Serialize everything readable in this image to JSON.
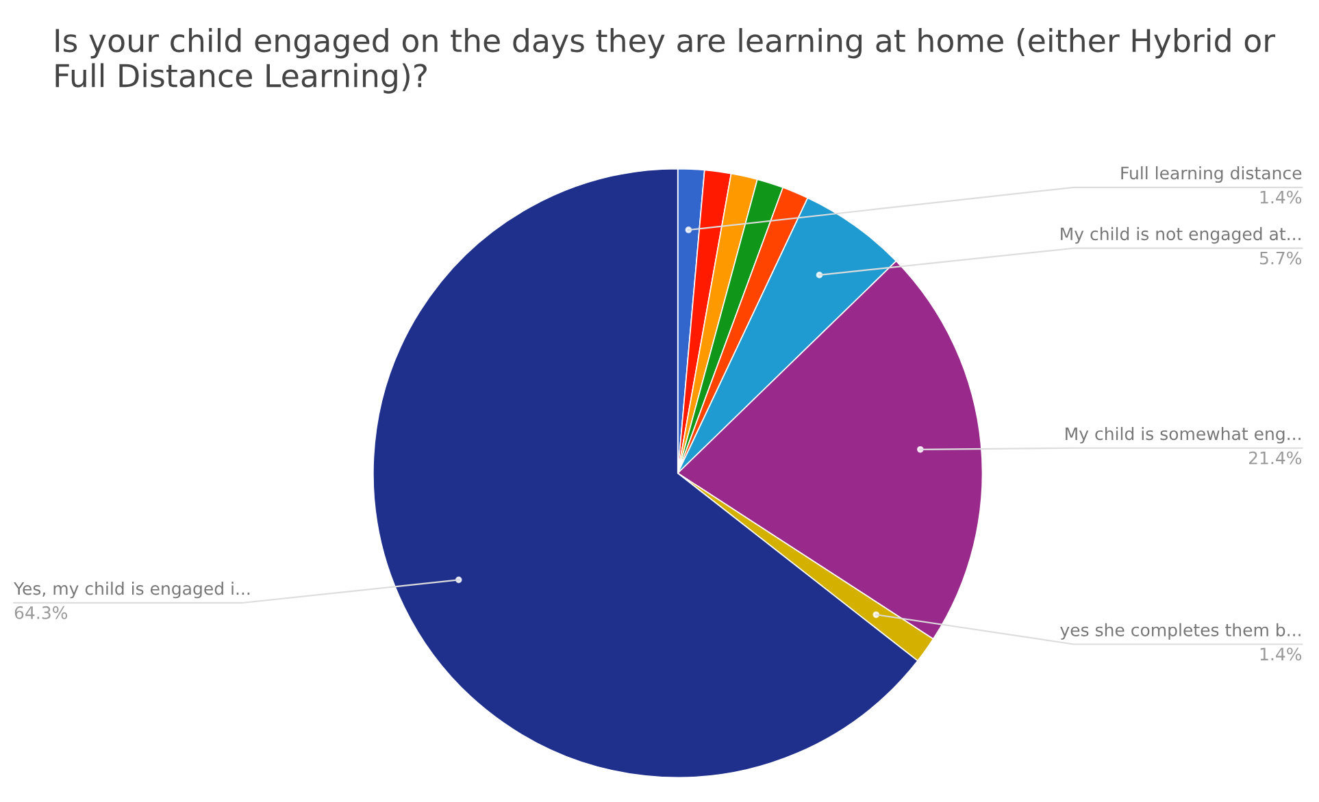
{
  "chart_data": {
    "type": "pie",
    "title": "Is your child engaged on the days they are learning at home (either Hybrid or Full Distance Learning)?",
    "categories": [
      "Full learning distance",
      null,
      null,
      null,
      null,
      "My child is not engaged at...",
      "My child is somewhat eng...",
      "yes she completes them b...",
      "Yes, my child is engaged i..."
    ],
    "values": [
      1.4,
      1.4,
      1.4,
      1.4,
      1.4,
      5.7,
      21.4,
      1.4,
      64.3
    ],
    "value_labels": [
      "1.4%",
      null,
      null,
      null,
      null,
      "5.7%",
      "21.4%",
      "1.4%",
      "64.3%"
    ],
    "colors": [
      "#3366cc",
      "#ff1a00",
      "#ff9900",
      "#109618",
      "#ff4400",
      "#1f9bd1",
      "#992a8c",
      "#d4b000",
      "#1f2f8c"
    ]
  }
}
